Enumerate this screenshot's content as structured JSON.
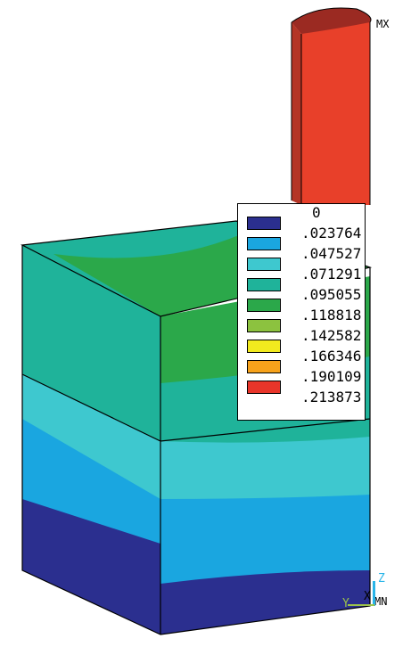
{
  "markers": {
    "max_label": "MX",
    "min_label": "MN"
  },
  "triad": {
    "z": "Z",
    "x": "X",
    "y": "Y"
  },
  "legend": {
    "top_value": "0",
    "items": [
      {
        "value": ".023764",
        "color": "#2b2f8f"
      },
      {
        "value": ".047527",
        "color": "#1aa6e0"
      },
      {
        "value": ".071291",
        "color": "#3ec8cf"
      },
      {
        "value": ".095055",
        "color": "#1fb39a"
      },
      {
        "value": ".118818",
        "color": "#2ba84a"
      },
      {
        "value": ".142582",
        "color": "#8cc23f"
      },
      {
        "value": ".166346",
        "color": "#f2ea1e"
      },
      {
        "value": ".190109",
        "color": "#f7a21b"
      },
      {
        "value": ".213873",
        "color": "#e8352a"
      }
    ]
  }
}
